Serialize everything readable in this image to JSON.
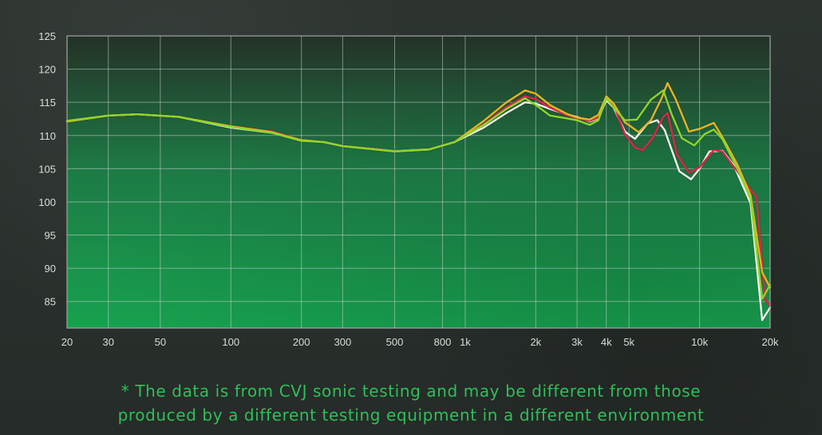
{
  "chart_data": {
    "type": "line",
    "title": "",
    "xlabel": "",
    "ylabel": "",
    "x_scale": "log",
    "xlim": [
      20,
      20000
    ],
    "ylim": [
      81,
      125
    ],
    "grid": true,
    "legend": "none",
    "x_ticks": [
      {
        "value": 20,
        "label": "20"
      },
      {
        "value": 30,
        "label": "30"
      },
      {
        "value": 50,
        "label": "50"
      },
      {
        "value": 100,
        "label": "100"
      },
      {
        "value": 200,
        "label": "200"
      },
      {
        "value": 300,
        "label": "300"
      },
      {
        "value": 500,
        "label": "500"
      },
      {
        "value": 800,
        "label": "800"
      },
      {
        "value": 1000,
        "label": "1k"
      },
      {
        "value": 2000,
        "label": "2k"
      },
      {
        "value": 3000,
        "label": "3k"
      },
      {
        "value": 4000,
        "label": "4k"
      },
      {
        "value": 5000,
        "label": "5k"
      },
      {
        "value": 10000,
        "label": "10k"
      },
      {
        "value": 20000,
        "label": "20k"
      }
    ],
    "y_ticks": [
      {
        "value": 125,
        "label": "125"
      },
      {
        "value": 120,
        "label": "120"
      },
      {
        "value": 115,
        "label": "115"
      },
      {
        "value": 110,
        "label": "110"
      },
      {
        "value": 105,
        "label": "105"
      },
      {
        "value": 100,
        "label": "100"
      },
      {
        "value": 95,
        "label": "95"
      },
      {
        "value": 90,
        "label": "90"
      },
      {
        "value": 85,
        "label": "85"
      }
    ],
    "series": [
      {
        "color": "#f3f3ea",
        "points": [
          [
            20,
            112.2
          ],
          [
            30,
            113.0
          ],
          [
            40,
            113.2
          ],
          [
            60,
            112.8
          ],
          [
            100,
            111.2
          ],
          [
            150,
            110.4
          ],
          [
            200,
            109.3
          ],
          [
            250,
            109.0
          ],
          [
            300,
            108.4
          ],
          [
            500,
            107.7
          ],
          [
            700,
            107.9
          ],
          [
            900,
            109.0
          ],
          [
            1200,
            111.2
          ],
          [
            1500,
            113.4
          ],
          [
            1800,
            115.0
          ],
          [
            2000,
            114.8
          ],
          [
            2300,
            114.0
          ],
          [
            2700,
            113.2
          ],
          [
            3000,
            112.8
          ],
          [
            3400,
            112.1
          ],
          [
            3700,
            112.6
          ],
          [
            4000,
            115.3
          ],
          [
            4300,
            114.2
          ],
          [
            4800,
            110.6
          ],
          [
            5300,
            109.5
          ],
          [
            6000,
            111.8
          ],
          [
            6600,
            112.3
          ],
          [
            7100,
            110.8
          ],
          [
            8200,
            104.6
          ],
          [
            9200,
            103.4
          ],
          [
            10000,
            105.0
          ],
          [
            11000,
            107.6
          ],
          [
            12500,
            107.7
          ],
          [
            14000,
            105.5
          ],
          [
            16500,
            99.8
          ],
          [
            18500,
            82.2
          ],
          [
            20000,
            84.1
          ]
        ]
      },
      {
        "color": "#d8284a",
        "points": [
          [
            20,
            112.2
          ],
          [
            30,
            113.0
          ],
          [
            40,
            113.2
          ],
          [
            60,
            112.8
          ],
          [
            100,
            111.4
          ],
          [
            150,
            110.6
          ],
          [
            200,
            109.3
          ],
          [
            250,
            109.0
          ],
          [
            300,
            108.4
          ],
          [
            500,
            107.7
          ],
          [
            700,
            107.9
          ],
          [
            900,
            109.0
          ],
          [
            1200,
            111.7
          ],
          [
            1500,
            114.3
          ],
          [
            1800,
            115.9
          ],
          [
            2000,
            115.5
          ],
          [
            2300,
            114.2
          ],
          [
            2700,
            113.1
          ],
          [
            3000,
            112.6
          ],
          [
            3400,
            112.2
          ],
          [
            3700,
            112.7
          ],
          [
            4000,
            115.7
          ],
          [
            4300,
            114.6
          ],
          [
            4800,
            110.2
          ],
          [
            5300,
            108.2
          ],
          [
            5700,
            107.8
          ],
          [
            6300,
            109.6
          ],
          [
            7000,
            112.8
          ],
          [
            7300,
            113.4
          ],
          [
            8000,
            107.2
          ],
          [
            9000,
            104.4
          ],
          [
            10000,
            105.2
          ],
          [
            11500,
            107.8
          ],
          [
            12500,
            107.6
          ],
          [
            14500,
            104.6
          ],
          [
            16500,
            101.8
          ],
          [
            17500,
            100.8
          ],
          [
            19000,
            85.4
          ],
          [
            20000,
            84.3
          ]
        ]
      },
      {
        "color": "#e3b428",
        "points": [
          [
            20,
            112.1
          ],
          [
            30,
            113.0
          ],
          [
            40,
            113.2
          ],
          [
            60,
            112.8
          ],
          [
            100,
            111.4
          ],
          [
            150,
            110.5
          ],
          [
            200,
            109.3
          ],
          [
            250,
            109.0
          ],
          [
            300,
            108.4
          ],
          [
            500,
            107.6
          ],
          [
            700,
            107.9
          ],
          [
            900,
            109.0
          ],
          [
            1200,
            112.2
          ],
          [
            1500,
            115.0
          ],
          [
            1800,
            116.8
          ],
          [
            2000,
            116.3
          ],
          [
            2300,
            114.6
          ],
          [
            2700,
            113.3
          ],
          [
            3000,
            112.7
          ],
          [
            3400,
            112.4
          ],
          [
            3700,
            113.1
          ],
          [
            4000,
            115.9
          ],
          [
            4300,
            114.8
          ],
          [
            4800,
            112.0
          ],
          [
            5500,
            110.5
          ],
          [
            6200,
            112.3
          ],
          [
            6900,
            115.7
          ],
          [
            7300,
            117.9
          ],
          [
            7900,
            115.5
          ],
          [
            9000,
            110.6
          ],
          [
            10000,
            111.0
          ],
          [
            11500,
            111.9
          ],
          [
            12500,
            109.8
          ],
          [
            14500,
            105.6
          ],
          [
            16500,
            101.0
          ],
          [
            18500,
            89.4
          ],
          [
            20000,
            87.1
          ]
        ]
      },
      {
        "color": "#8bd629",
        "points": [
          [
            20,
            112.2
          ],
          [
            30,
            113.0
          ],
          [
            40,
            113.2
          ],
          [
            60,
            112.8
          ],
          [
            100,
            111.3
          ],
          [
            150,
            110.4
          ],
          [
            200,
            109.2
          ],
          [
            250,
            109.0
          ],
          [
            300,
            108.4
          ],
          [
            500,
            107.6
          ],
          [
            700,
            107.9
          ],
          [
            900,
            109.0
          ],
          [
            1200,
            111.6
          ],
          [
            1500,
            114.0
          ],
          [
            1800,
            115.6
          ],
          [
            2000,
            114.6
          ],
          [
            2300,
            113.0
          ],
          [
            2700,
            112.6
          ],
          [
            3000,
            112.3
          ],
          [
            3400,
            111.6
          ],
          [
            3700,
            112.3
          ],
          [
            4000,
            115.6
          ],
          [
            4300,
            114.2
          ],
          [
            4800,
            112.3
          ],
          [
            5400,
            112.4
          ],
          [
            6200,
            115.4
          ],
          [
            7000,
            116.8
          ],
          [
            7600,
            113.2
          ],
          [
            8400,
            109.6
          ],
          [
            9500,
            108.5
          ],
          [
            10500,
            110.2
          ],
          [
            11500,
            110.9
          ],
          [
            12500,
            109.5
          ],
          [
            14500,
            105.0
          ],
          [
            16500,
            100.5
          ],
          [
            18500,
            85.4
          ],
          [
            20000,
            87.5
          ]
        ]
      }
    ]
  },
  "footnote": {
    "line1": "* The data is from CVJ sonic testing and may be different from those",
    "line2": "produced by a different testing equipment in a different environment"
  }
}
